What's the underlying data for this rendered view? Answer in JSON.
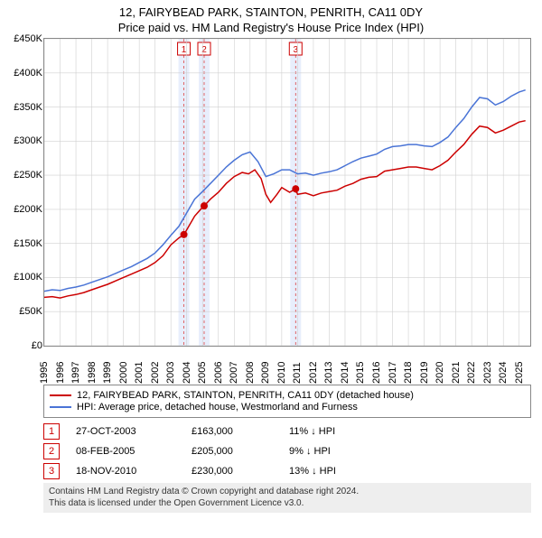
{
  "title_main": "12, FAIRYBEAD PARK, STAINTON, PENRITH, CA11 0DY",
  "title_sub": "Price paid vs. HM Land Registry's House Price Index (HPI)",
  "chart": {
    "type": "line",
    "background_color": "#ffffff",
    "border_color": "#888888",
    "xlim": [
      1995,
      2025.7
    ],
    "ylim": [
      0,
      450000
    ],
    "ytick_step": 50000,
    "ytick_labels": [
      "£0",
      "£50K",
      "£100K",
      "£150K",
      "£200K",
      "£250K",
      "£300K",
      "£350K",
      "£400K",
      "£450K"
    ],
    "xtick_step": 1,
    "xtick_labels": [
      "1995",
      "1996",
      "1997",
      "1998",
      "1999",
      "2000",
      "2001",
      "2002",
      "2003",
      "2004",
      "2005",
      "2006",
      "2007",
      "2008",
      "2009",
      "2010",
      "2011",
      "2012",
      "2013",
      "2014",
      "2015",
      "2016",
      "2017",
      "2018",
      "2019",
      "2020",
      "2021",
      "2022",
      "2023",
      "2024",
      "2025"
    ],
    "grid_color": "#d0d0d0",
    "line_width": 1.5,
    "sale_bands": [
      {
        "x": 2003.82,
        "label": "1"
      },
      {
        "x": 2005.1,
        "label": "2"
      },
      {
        "x": 2010.88,
        "label": "3"
      }
    ],
    "band_fill": "#e8eefc",
    "band_dash_color": "#d44",
    "marker_color": "#cc0000",
    "marker_radius": 4,
    "series": [
      {
        "name": "subject",
        "color": "#cc0000",
        "label": "12, FAIRYBEAD PARK, STAINTON, PENRITH, CA11 0DY (detached house)",
        "data": [
          [
            1995.0,
            71000
          ],
          [
            1995.5,
            72000
          ],
          [
            1996.0,
            70000
          ],
          [
            1996.5,
            73000
          ],
          [
            1997.0,
            75000
          ],
          [
            1997.5,
            78000
          ],
          [
            1998.0,
            82000
          ],
          [
            1998.5,
            86000
          ],
          [
            1999.0,
            90000
          ],
          [
            1999.5,
            95000
          ],
          [
            2000.0,
            100000
          ],
          [
            2000.5,
            105000
          ],
          [
            2001.0,
            110000
          ],
          [
            2001.5,
            115000
          ],
          [
            2002.0,
            122000
          ],
          [
            2002.5,
            132000
          ],
          [
            2003.0,
            148000
          ],
          [
            2003.5,
            158000
          ],
          [
            2003.82,
            163000
          ],
          [
            2004.0,
            170000
          ],
          [
            2004.5,
            190000
          ],
          [
            2005.0,
            203000
          ],
          [
            2005.1,
            205000
          ],
          [
            2005.5,
            215000
          ],
          [
            2006.0,
            225000
          ],
          [
            2006.5,
            238000
          ],
          [
            2007.0,
            248000
          ],
          [
            2007.5,
            254000
          ],
          [
            2007.9,
            252000
          ],
          [
            2008.3,
            258000
          ],
          [
            2008.7,
            245000
          ],
          [
            2009.0,
            222000
          ],
          [
            2009.3,
            210000
          ],
          [
            2009.7,
            222000
          ],
          [
            2010.0,
            232000
          ],
          [
            2010.5,
            225000
          ],
          [
            2010.88,
            230000
          ],
          [
            2011.0,
            222000
          ],
          [
            2011.5,
            224000
          ],
          [
            2012.0,
            220000
          ],
          [
            2012.5,
            224000
          ],
          [
            2013.0,
            226000
          ],
          [
            2013.5,
            228000
          ],
          [
            2014.0,
            234000
          ],
          [
            2014.5,
            238000
          ],
          [
            2015.0,
            244000
          ],
          [
            2015.5,
            247000
          ],
          [
            2016.0,
            248000
          ],
          [
            2016.5,
            256000
          ],
          [
            2017.0,
            258000
          ],
          [
            2017.5,
            260000
          ],
          [
            2018.0,
            262000
          ],
          [
            2018.5,
            262000
          ],
          [
            2019.0,
            260000
          ],
          [
            2019.5,
            258000
          ],
          [
            2020.0,
            264000
          ],
          [
            2020.5,
            272000
          ],
          [
            2021.0,
            284000
          ],
          [
            2021.5,
            295000
          ],
          [
            2022.0,
            310000
          ],
          [
            2022.5,
            322000
          ],
          [
            2023.0,
            320000
          ],
          [
            2023.5,
            312000
          ],
          [
            2024.0,
            316000
          ],
          [
            2024.5,
            322000
          ],
          [
            2025.0,
            328000
          ],
          [
            2025.4,
            330000
          ]
        ]
      },
      {
        "name": "hpi",
        "color": "#4a74d6",
        "label": "HPI: Average price, detached house, Westmorland and Furness",
        "data": [
          [
            1995.0,
            80000
          ],
          [
            1995.5,
            82000
          ],
          [
            1996.0,
            81000
          ],
          [
            1996.5,
            84000
          ],
          [
            1997.0,
            86000
          ],
          [
            1997.5,
            89000
          ],
          [
            1998.0,
            93000
          ],
          [
            1998.5,
            97000
          ],
          [
            1999.0,
            101000
          ],
          [
            1999.5,
            106000
          ],
          [
            2000.0,
            111000
          ],
          [
            2000.5,
            116000
          ],
          [
            2001.0,
            122000
          ],
          [
            2001.5,
            128000
          ],
          [
            2002.0,
            136000
          ],
          [
            2002.5,
            148000
          ],
          [
            2003.0,
            162000
          ],
          [
            2003.5,
            175000
          ],
          [
            2004.0,
            195000
          ],
          [
            2004.5,
            215000
          ],
          [
            2005.0,
            226000
          ],
          [
            2005.5,
            238000
          ],
          [
            2006.0,
            250000
          ],
          [
            2006.5,
            262000
          ],
          [
            2007.0,
            272000
          ],
          [
            2007.5,
            280000
          ],
          [
            2008.0,
            284000
          ],
          [
            2008.5,
            270000
          ],
          [
            2009.0,
            248000
          ],
          [
            2009.5,
            252000
          ],
          [
            2010.0,
            258000
          ],
          [
            2010.5,
            258000
          ],
          [
            2011.0,
            252000
          ],
          [
            2011.5,
            253000
          ],
          [
            2012.0,
            250000
          ],
          [
            2012.5,
            253000
          ],
          [
            2013.0,
            255000
          ],
          [
            2013.5,
            258000
          ],
          [
            2014.0,
            264000
          ],
          [
            2014.5,
            270000
          ],
          [
            2015.0,
            275000
          ],
          [
            2015.5,
            278000
          ],
          [
            2016.0,
            281000
          ],
          [
            2016.5,
            288000
          ],
          [
            2017.0,
            292000
          ],
          [
            2017.5,
            293000
          ],
          [
            2018.0,
            295000
          ],
          [
            2018.5,
            295000
          ],
          [
            2019.0,
            293000
          ],
          [
            2019.5,
            292000
          ],
          [
            2020.0,
            298000
          ],
          [
            2020.5,
            306000
          ],
          [
            2021.0,
            320000
          ],
          [
            2021.5,
            333000
          ],
          [
            2022.0,
            350000
          ],
          [
            2022.5,
            364000
          ],
          [
            2023.0,
            362000
          ],
          [
            2023.5,
            353000
          ],
          [
            2024.0,
            358000
          ],
          [
            2024.5,
            366000
          ],
          [
            2025.0,
            372000
          ],
          [
            2025.4,
            375000
          ]
        ]
      }
    ]
  },
  "legend": {
    "items": [
      {
        "color": "#cc0000",
        "text": "12, FAIRYBEAD PARK, STAINTON, PENRITH, CA11 0DY (detached house)"
      },
      {
        "color": "#4a74d6",
        "text": "HPI: Average price, detached house, Westmorland and Furness"
      }
    ]
  },
  "sales": [
    {
      "n": "1",
      "date": "27-OCT-2003",
      "price": "£163,000",
      "delta": "11% ↓ HPI"
    },
    {
      "n": "2",
      "date": "08-FEB-2005",
      "price": "£205,000",
      "delta": "9% ↓ HPI"
    },
    {
      "n": "3",
      "date": "18-NOV-2010",
      "price": "£230,000",
      "delta": "13% ↓ HPI"
    }
  ],
  "footer_line1": "Contains HM Land Registry data © Crown copyright and database right 2024.",
  "footer_line2": "This data is licensed under the Open Government Licence v3.0."
}
